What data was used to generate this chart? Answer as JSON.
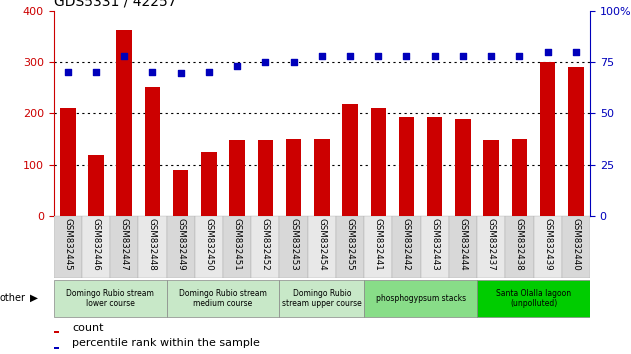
{
  "title": "GDS5331 / 42257",
  "samples": [
    "GSM832445",
    "GSM832446",
    "GSM832447",
    "GSM832448",
    "GSM832449",
    "GSM832450",
    "GSM832451",
    "GSM832452",
    "GSM832453",
    "GSM832454",
    "GSM832455",
    "GSM832441",
    "GSM832442",
    "GSM832443",
    "GSM832444",
    "GSM832437",
    "GSM832438",
    "GSM832439",
    "GSM832440"
  ],
  "counts": [
    210,
    118,
    362,
    252,
    90,
    125,
    147,
    147,
    150,
    150,
    218,
    210,
    193,
    193,
    188,
    148,
    150,
    300,
    290
  ],
  "percentile_values": [
    280,
    280,
    312,
    280,
    278,
    280,
    292,
    300,
    300,
    312,
    312,
    312,
    312,
    312,
    312,
    312,
    312,
    320,
    320
  ],
  "ylim_left": [
    0,
    400
  ],
  "yticks_left": [
    0,
    100,
    200,
    300,
    400
  ],
  "yticks_right_vals": [
    0,
    100,
    200,
    300,
    400
  ],
  "yticks_right_labels": [
    "0",
    "25",
    "50",
    "75",
    "100%"
  ],
  "groups": [
    {
      "label": "Domingo Rubio stream\nlower course",
      "start": 0,
      "end": 4,
      "color": "#c8e8c8"
    },
    {
      "label": "Domingo Rubio stream\nmedium course",
      "start": 4,
      "end": 8,
      "color": "#c8e8c8"
    },
    {
      "label": "Domingo Rubio\nstream upper course",
      "start": 8,
      "end": 11,
      "color": "#c8e8c8"
    },
    {
      "label": "phosphogypsum stacks",
      "start": 11,
      "end": 15,
      "color": "#88dd88"
    },
    {
      "label": "Santa Olalla lagoon\n(unpolluted)",
      "start": 15,
      "end": 19,
      "color": "#00cc00"
    }
  ],
  "bar_color": "#cc0000",
  "dot_color": "#0000bb",
  "xtick_bg_even": "#d8d8d8",
  "xtick_bg_odd": "#e8e8e8",
  "ylabel_left_color": "#cc0000",
  "ylabel_right_color": "#0000bb",
  "title_fontsize": 10,
  "bar_width": 0.55
}
